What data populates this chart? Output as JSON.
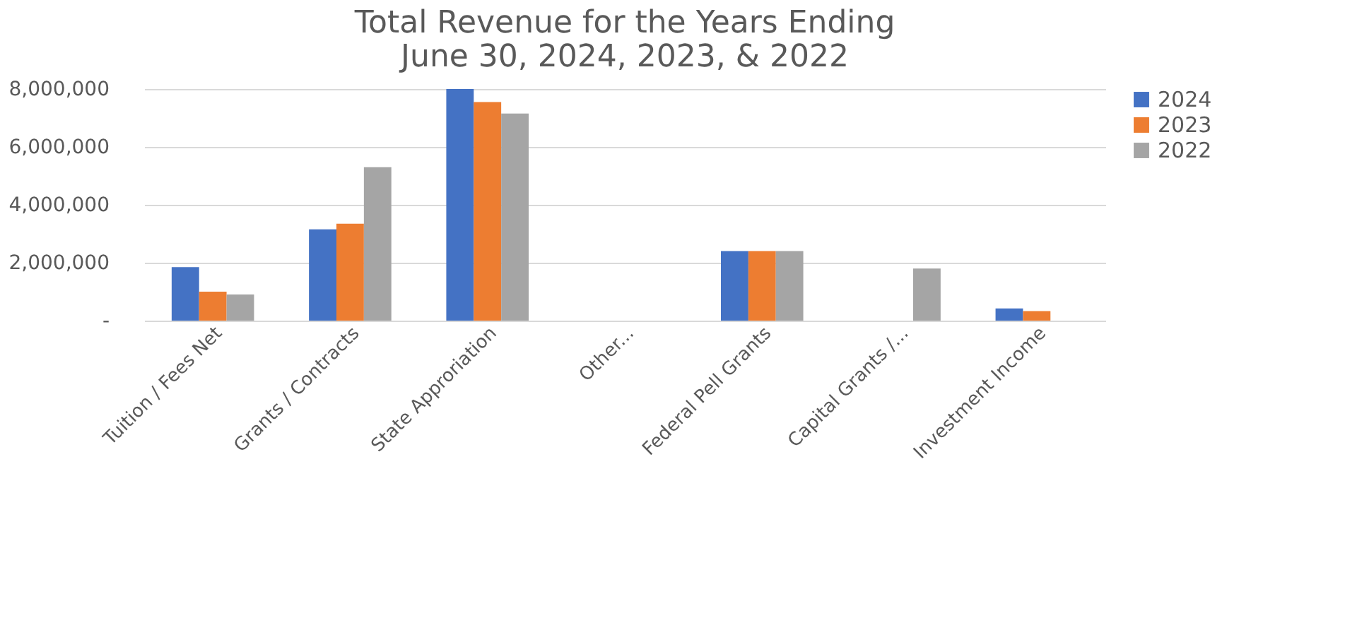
{
  "chart_data": {
    "type": "bar",
    "title": [
      "Total Revenue for the Years Ending",
      "June 30, 2024, 2023, & 2022"
    ],
    "categories": [
      "Tuition / Fees Net",
      "Grants / Contracts",
      "State Approriation",
      "Other...",
      "Federal Pell Grants",
      "Capital Grants /...",
      "Investment Income"
    ],
    "series": [
      {
        "name": "2024",
        "color": "#4472c4",
        "values": [
          1850000,
          3150000,
          8000000,
          null,
          2400000,
          null,
          420000
        ]
      },
      {
        "name": "2023",
        "color": "#ed7d31",
        "values": [
          1000000,
          3350000,
          7550000,
          null,
          2400000,
          null,
          330000
        ]
      },
      {
        "name": "2022",
        "color": "#a5a5a5",
        "values": [
          900000,
          5300000,
          7150000,
          null,
          2400000,
          1800000,
          null
        ]
      }
    ],
    "ylim": [
      0,
      8000000
    ],
    "yticks": [
      {
        "value": 0,
        "label": "-"
      },
      {
        "value": 2000000,
        "label": "2,000,000"
      },
      {
        "value": 4000000,
        "label": "4,000,000"
      },
      {
        "value": 6000000,
        "label": "6,000,000"
      },
      {
        "value": 8000000,
        "label": "8,000,000"
      }
    ],
    "grid": "y",
    "legend": "right"
  }
}
